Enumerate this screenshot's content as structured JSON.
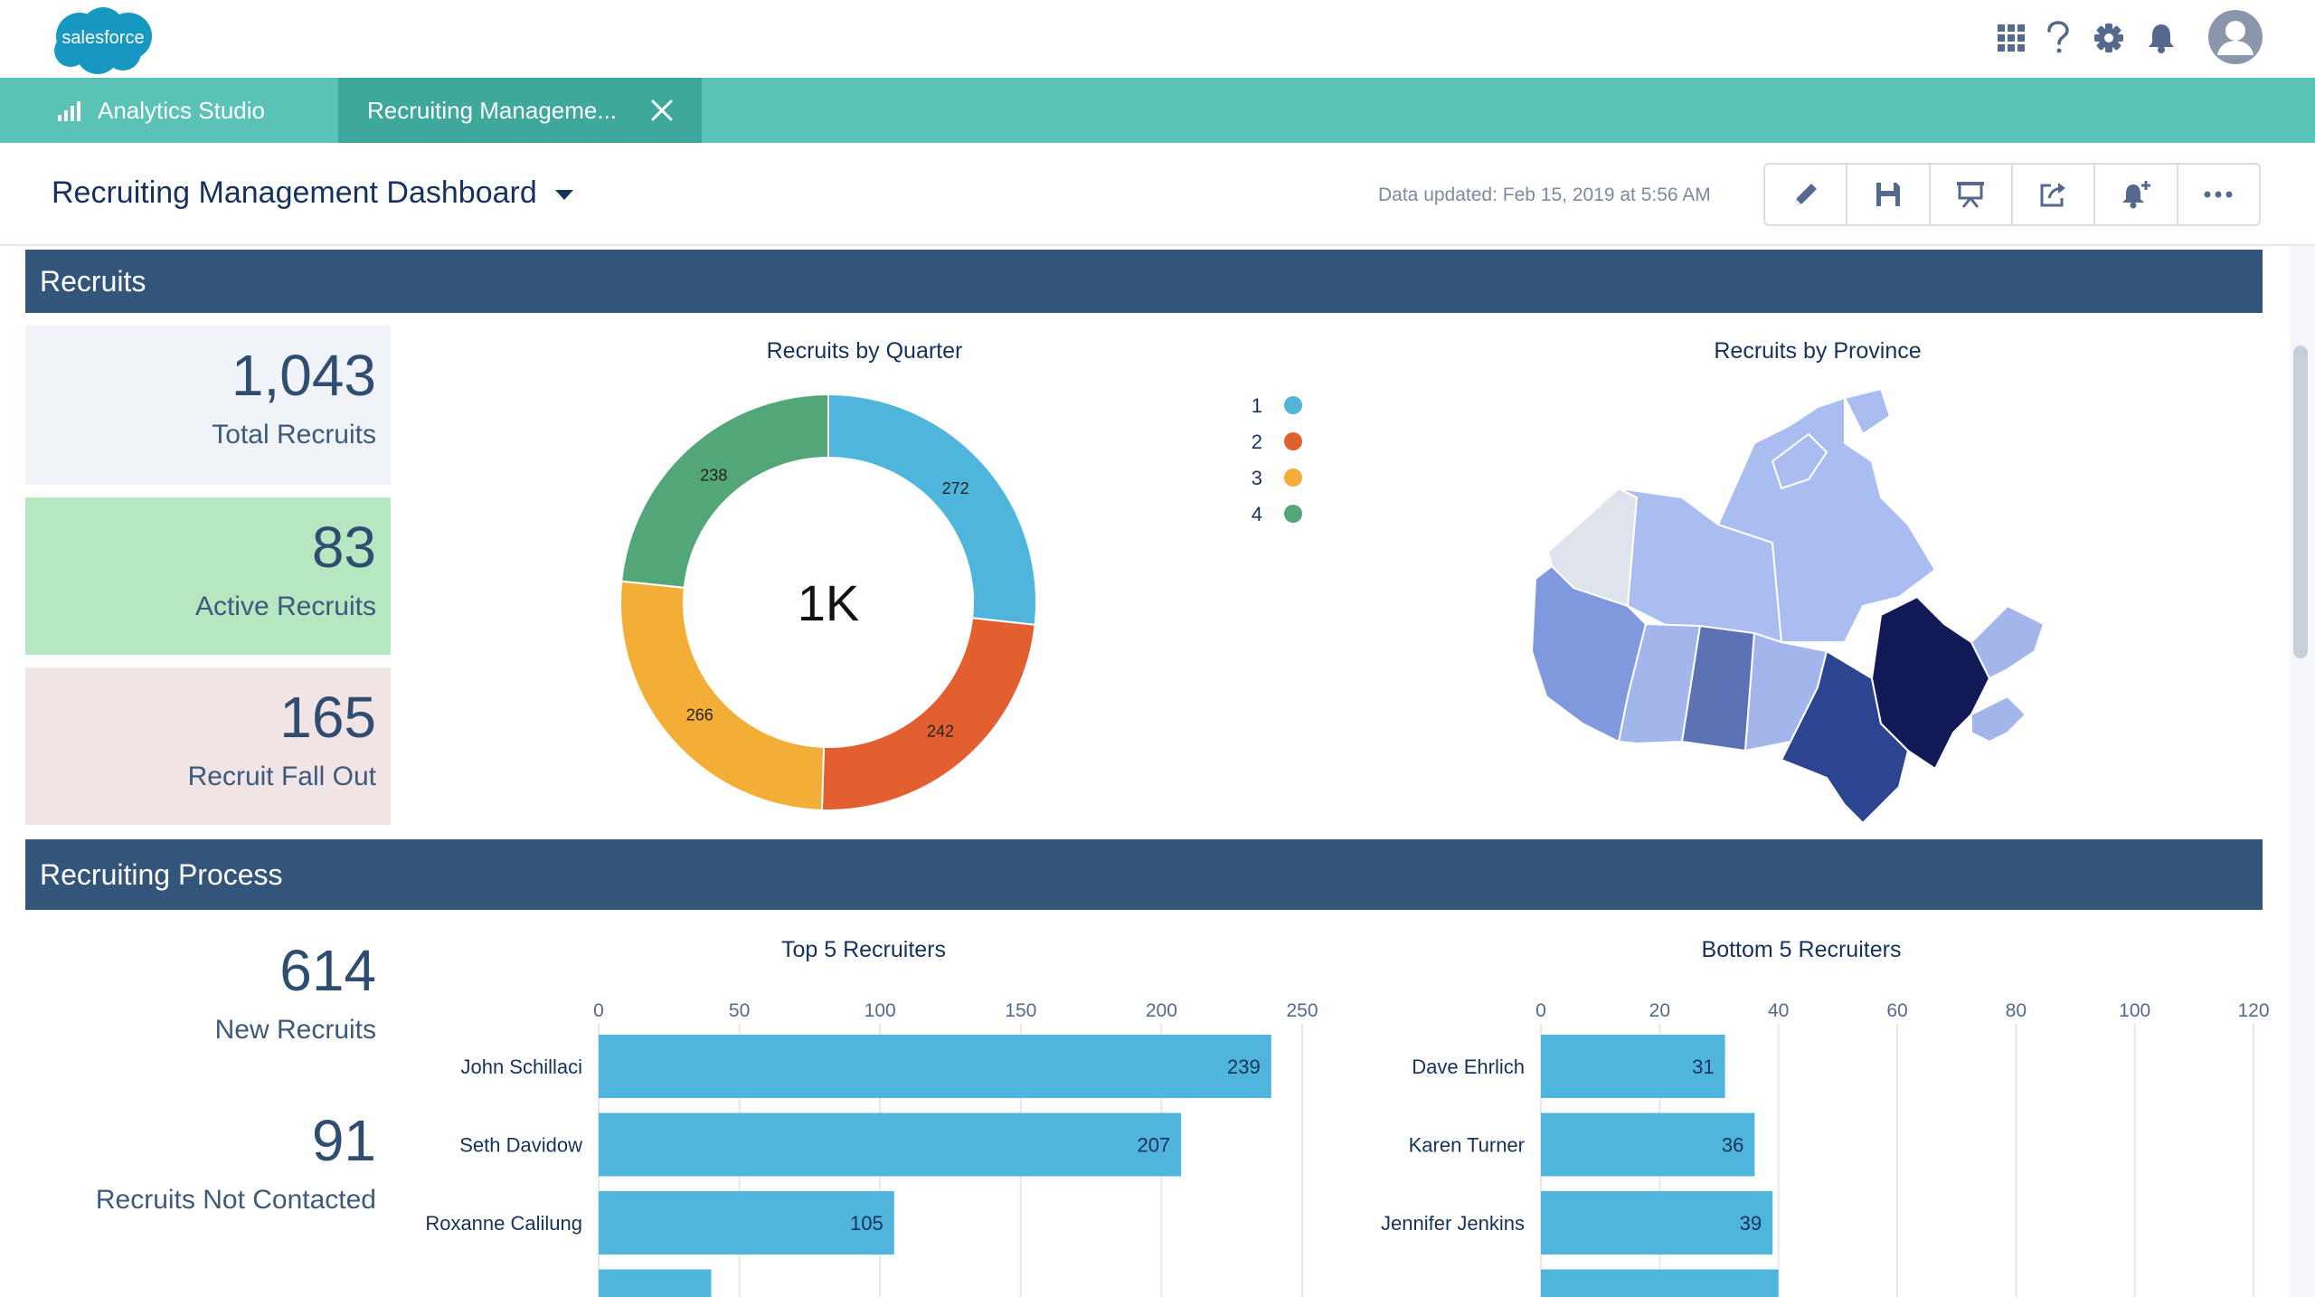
{
  "app": {
    "logo_text": "salesforce",
    "logo_color": "#1798c1"
  },
  "top_icons": [
    "app-launcher-icon",
    "help-icon",
    "settings-gear-icon",
    "notifications-bell-icon",
    "user-avatar-icon"
  ],
  "tabs": [
    {
      "label": "Analytics Studio",
      "icon": "bar-chart-icon"
    },
    {
      "label": "Recruiting Manageme...",
      "active": true
    }
  ],
  "header": {
    "title": "Recruiting Management Dashboard",
    "updated": "Data updated: Feb 15, 2019 at 5:56 AM",
    "actions": [
      "edit-pencil-icon",
      "save-icon",
      "present-icon",
      "share-icon",
      "subscribe-bell-icon",
      "more-actions-icon"
    ]
  },
  "recruits_section": {
    "title": "Recruits",
    "kpis": [
      {
        "value": "1,043",
        "label": "Total Recruits",
        "bg": "#f0f3f8"
      },
      {
        "value": "83",
        "label": "Active Recruits",
        "bg": "#b5e8c0"
      },
      {
        "value": "165",
        "label": "Recruit Fall Out",
        "bg": "#f0e4e5"
      }
    ],
    "donut_title": "Recruits by Quarter",
    "donut_center": "1K",
    "map_title": "Recruits by Province"
  },
  "process_section": {
    "title": "Recruiting Process",
    "kpis": [
      {
        "value": "614",
        "label": "New Recruits"
      },
      {
        "value": "91",
        "label": "Recruits Not Contacted"
      }
    ],
    "top_title": "Top 5 Recruiters",
    "bottom_title": "Bottom 5 Recruiters"
  },
  "chart_data": [
    {
      "type": "pie",
      "title": "Recruits by Quarter",
      "categories": [
        "1",
        "2",
        "3",
        "4"
      ],
      "values": [
        272,
        242,
        266,
        238
      ],
      "colors": [
        "#4fb5dd",
        "#e35f30",
        "#f3ae38",
        "#53a678"
      ],
      "legend": "top-right"
    },
    {
      "type": "bar",
      "title": "Top 5 Recruiters",
      "orientation": "horizontal",
      "categories": [
        "John Schillaci",
        "Seth Davidow",
        "Roxanne Calilung",
        ""
      ],
      "values": [
        239,
        207,
        105,
        40
      ],
      "xticks": [
        0,
        50,
        100,
        150,
        200,
        250
      ],
      "xlim": [
        0,
        250
      ],
      "color": "#4fb5dd",
      "grid": true
    },
    {
      "type": "bar",
      "title": "Bottom 5 Recruiters",
      "orientation": "horizontal",
      "categories": [
        "Dave Ehrlich",
        "Karen Turner",
        "Jennifer Jenkins",
        ""
      ],
      "values": [
        31,
        36,
        39,
        40
      ],
      "xticks": [
        0,
        20,
        40,
        60,
        80,
        100,
        120
      ],
      "xlim": [
        0,
        120
      ],
      "color": "#4fb5dd",
      "grid": true
    }
  ]
}
